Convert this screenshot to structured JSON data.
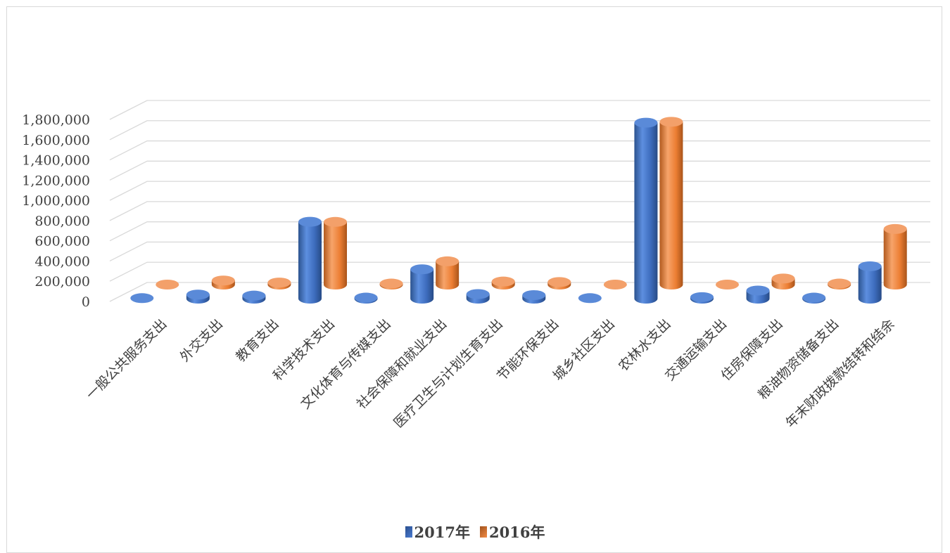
{
  "chart_data": {
    "type": "bar",
    "title": "",
    "xlabel": "",
    "ylabel": "",
    "ylim": [
      0,
      1800000
    ],
    "yticks": [
      0,
      200000,
      400000,
      600000,
      800000,
      1000000,
      1200000,
      1400000,
      1600000,
      1800000
    ],
    "ytick_labels": [
      "0",
      "200,000",
      "400,000",
      "600,000",
      "800,000",
      "1,000,000",
      "1,200,000",
      "1,400,000",
      "1,600,000",
      "1,800,000"
    ],
    "grid": true,
    "three_d": true,
    "legend_position": "bottom",
    "categories": [
      "一般公共服务支出",
      "外交支出",
      "教育支出",
      "科学技术支出",
      "文化体育与传媒支出",
      "社会保障和就业支出",
      "医疗卫生与计划生育支出",
      "节能环保支出",
      "城乡社区支出",
      "农林水支出",
      "交通运输支出",
      "住房保障支出",
      "粮油物资储备支出",
      "年末财政拨款结转和结余"
    ],
    "series": [
      {
        "name": "2017年",
        "color": "#4472c4",
        "values": [
          5000,
          40000,
          30000,
          760000,
          10000,
          290000,
          45000,
          35000,
          5000,
          1740000,
          15000,
          80000,
          10000,
          320000
        ]
      },
      {
        "name": "2016年",
        "color": "#ed7d31",
        "values": [
          0,
          40000,
          20000,
          620000,
          10000,
          230000,
          30000,
          25000,
          0,
          1610000,
          0,
          60000,
          10000,
          550000
        ]
      }
    ]
  }
}
